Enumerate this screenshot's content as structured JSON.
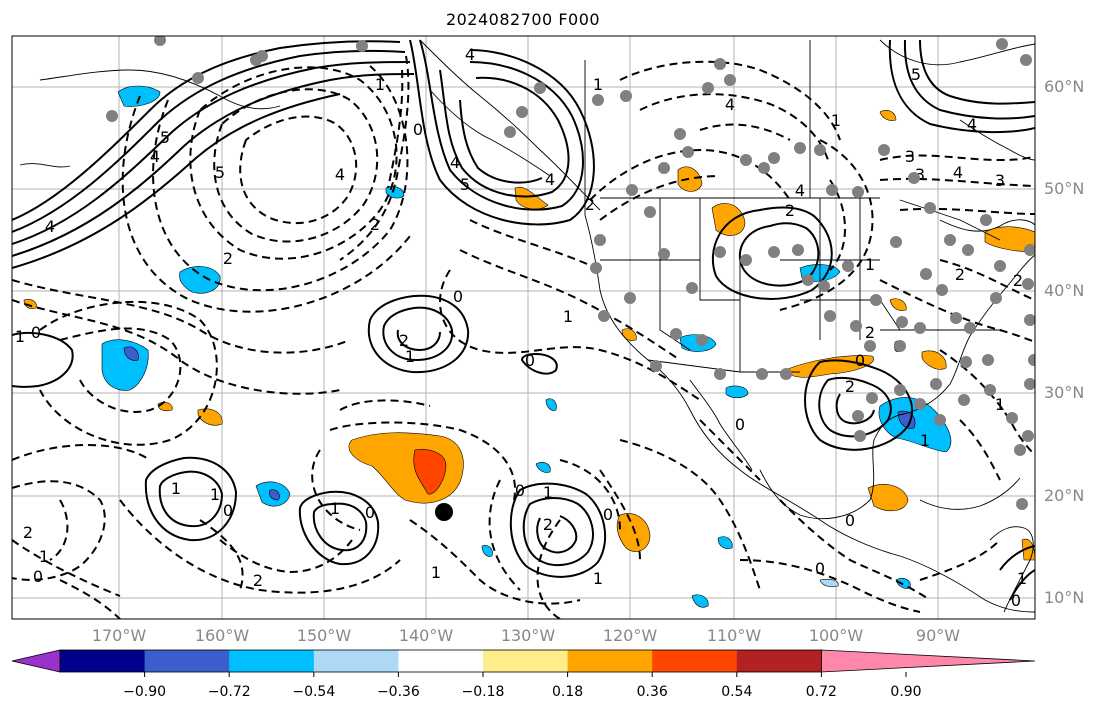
{
  "title": "2024082700 F000",
  "lon_labels": [
    "170°W",
    "160°W",
    "150°W",
    "140°W",
    "130°W",
    "120°W",
    "110°W",
    "100°W",
    "90°W"
  ],
  "lat_labels": [
    "60°N",
    "50°N",
    "40°N",
    "30°N",
    "20°N",
    "10°N"
  ],
  "contour_labels": [
    "-1",
    "-2",
    "-3",
    "-4",
    "-5",
    "0",
    "1",
    "2",
    "3",
    "4",
    "5"
  ],
  "colorbar": {
    "ticks": [
      "−0.90",
      "−0.72",
      "−0.54",
      "−0.36",
      "−0.18",
      "0.18",
      "0.36",
      "0.54",
      "0.72",
      "0.90"
    ],
    "colors": [
      "#9932cc",
      "#00008b",
      "#3a5fcd",
      "#00bfff",
      "#add8f6",
      "#ffffff",
      "#ffec8b",
      "#ffa500",
      "#ff4500",
      "#b22222",
      "#ff88aa"
    ]
  }
}
